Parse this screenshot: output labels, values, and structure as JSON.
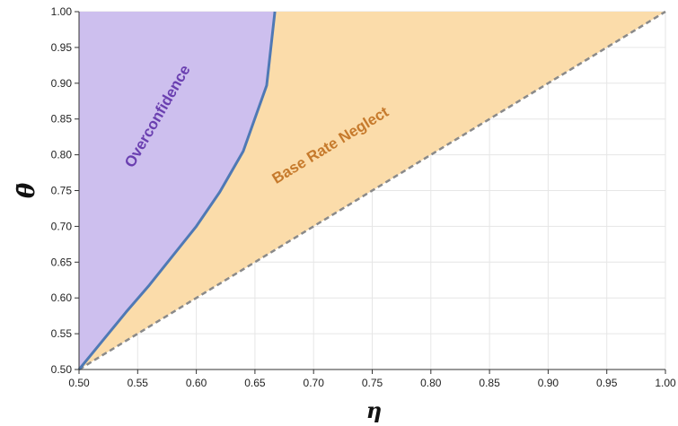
{
  "chart_data": {
    "type": "area",
    "xlabel": "η",
    "ylabel": "θ̄",
    "xlim": [
      0.5,
      1.0
    ],
    "ylim": [
      0.5,
      1.0
    ],
    "xticks": [
      "0.50",
      "0.55",
      "0.60",
      "0.65",
      "0.70",
      "0.75",
      "0.80",
      "0.85",
      "0.90",
      "0.95",
      "1.00"
    ],
    "yticks": [
      "0.50",
      "0.55",
      "0.60",
      "0.65",
      "0.70",
      "0.75",
      "0.80",
      "0.85",
      "0.90",
      "0.95",
      "1.00"
    ],
    "grid": true,
    "curve": {
      "x": [
        0.5,
        0.52,
        0.54,
        0.56,
        0.58,
        0.6,
        0.62,
        0.64,
        0.66,
        0.667
      ],
      "y": [
        0.5,
        0.54,
        0.58,
        0.618,
        0.659,
        0.7,
        0.748,
        0.805,
        0.897,
        1.0
      ],
      "color": "#4f79b5",
      "style": "solid"
    },
    "diagonal": {
      "x": [
        0.5,
        1.0
      ],
      "y": [
        0.5,
        1.0
      ],
      "color": "#8a8a8a",
      "style": "dashed"
    },
    "regions": [
      {
        "label": "Overconfidence",
        "fill": "#cdbfee",
        "text_color": "#6a3fb0"
      },
      {
        "label": "Base Rate Neglect",
        "fill": "#fbdcaa",
        "text_color": "#c67a2c"
      }
    ]
  }
}
